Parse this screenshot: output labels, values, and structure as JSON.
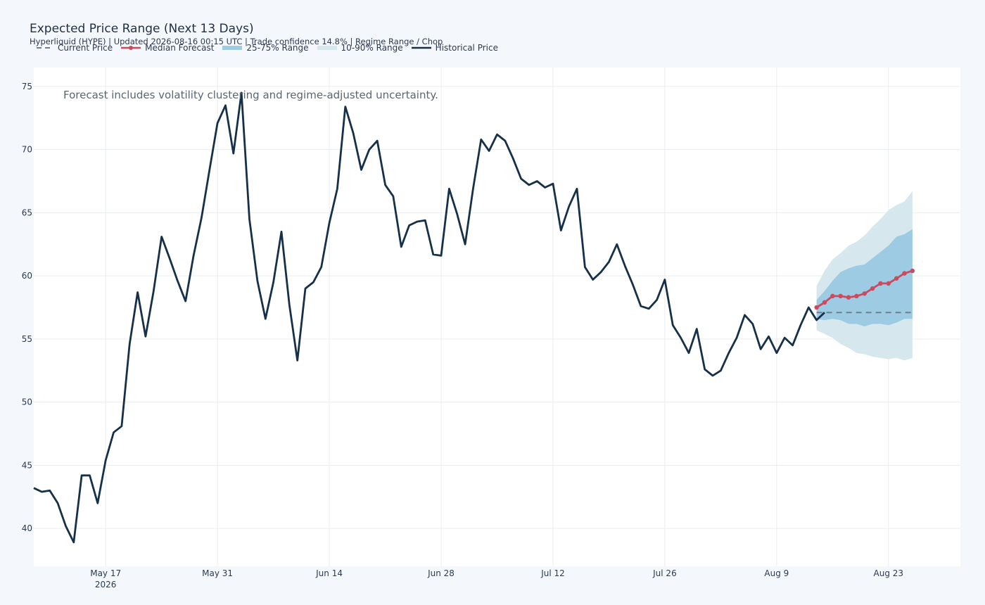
{
  "chart_data": {
    "type": "line",
    "title": "Expected Price Range (Next 13 Days)",
    "subtitle": "Hyperliquid (HYPE) | Updated 2026-08-16 00:15 UTC | Trade confidence 14.8% | Regime Range / Chop",
    "annotation": "Forecast includes volatility clustering and regime-adjusted uncertainty.",
    "xlabel": "",
    "ylabel": "",
    "xlim": [
      "2026-05-08",
      "2026-09-01"
    ],
    "ylim": [
      37,
      76.5
    ],
    "grid": true,
    "legend_placement": "top-left",
    "x_ticks": [
      {
        "date": "2026-05-17",
        "label": "May 17",
        "sublabel": "2026"
      },
      {
        "date": "2026-05-31",
        "label": "May 31",
        "sublabel": ""
      },
      {
        "date": "2026-06-14",
        "label": "Jun 14",
        "sublabel": ""
      },
      {
        "date": "2026-06-28",
        "label": "Jun 28",
        "sublabel": ""
      },
      {
        "date": "2026-07-12",
        "label": "Jul 12",
        "sublabel": ""
      },
      {
        "date": "2026-07-26",
        "label": "Jul 26",
        "sublabel": ""
      },
      {
        "date": "2026-08-09",
        "label": "Aug 9",
        "sublabel": ""
      },
      {
        "date": "2026-08-23",
        "label": "Aug 23",
        "sublabel": ""
      }
    ],
    "y_ticks": [
      40,
      45,
      50,
      55,
      60,
      65,
      70,
      75
    ],
    "legend": [
      {
        "key": "current",
        "label": "Current Price"
      },
      {
        "key": "median",
        "label": "Median Forecast"
      },
      {
        "key": "band50",
        "label": "25-75% Range"
      },
      {
        "key": "band80",
        "label": "10-90% Range"
      },
      {
        "key": "hist",
        "label": "Historical Price"
      }
    ],
    "colors": {
      "historical": "#16304a",
      "median": "#cc4a5e",
      "current": "#6e7e8e",
      "band50": "#9dcbe3",
      "band80": "#d6e7ee",
      "grid": "#e9edf1",
      "plot_bg": "#ffffff"
    },
    "current_price": {
      "value": 57.1,
      "start": "2026-08-14",
      "end": "2026-08-26"
    },
    "series": [
      {
        "name": "Historical Price",
        "start_date": "2026-05-08",
        "values": [
          43.2,
          42.9,
          43.0,
          42.0,
          40.2,
          38.9,
          44.2,
          44.2,
          42.0,
          45.4,
          47.6,
          48.1,
          54.6,
          58.7,
          55.2,
          58.8,
          63.1,
          61.4,
          59.6,
          58.0,
          61.6,
          64.6,
          68.4,
          72.1,
          73.5,
          69.7,
          74.5,
          64.5,
          59.6,
          56.6,
          59.5,
          63.5,
          57.7,
          53.3,
          59.0,
          59.5,
          60.7,
          64.2,
          66.9,
          73.4,
          71.3,
          68.4,
          70.0,
          70.7,
          67.2,
          66.3,
          62.3,
          64.0,
          64.3,
          64.4,
          61.7,
          61.6,
          66.9,
          64.9,
          62.5,
          66.9,
          70.8,
          69.9,
          71.2,
          70.7,
          69.3,
          67.7,
          67.2,
          67.5,
          67.0,
          67.3,
          63.6,
          65.5,
          66.9,
          60.7,
          59.7,
          60.3,
          61.1,
          62.5,
          60.8,
          59.3,
          57.6,
          57.4,
          58.1,
          59.7,
          56.1,
          55.1,
          53.9,
          55.8,
          52.6,
          52.1,
          52.5,
          53.9,
          55.1,
          56.9,
          56.2,
          54.2,
          55.2,
          53.9,
          55.1,
          54.5,
          56.1,
          57.5,
          56.5,
          57.1
        ]
      },
      {
        "name": "Median Forecast",
        "start_date": "2026-08-14",
        "values": [
          57.5,
          57.9,
          58.4,
          58.4,
          58.3,
          58.4,
          58.6,
          59.0,
          59.4,
          59.4,
          59.8,
          60.2,
          60.4
        ]
      }
    ],
    "bands": [
      {
        "name": "10-90% Range",
        "start_date": "2026-08-14",
        "lower": [
          55.7,
          55.4,
          55.1,
          54.6,
          54.3,
          53.9,
          53.8,
          53.6,
          53.5,
          53.4,
          53.5,
          53.3,
          53.5
        ],
        "upper": [
          59.2,
          60.4,
          61.3,
          61.8,
          62.4,
          62.7,
          63.2,
          63.9,
          64.5,
          65.2,
          65.6,
          65.9,
          66.7
        ]
      },
      {
        "name": "25-75% Range",
        "start_date": "2026-08-14",
        "lower": [
          56.6,
          56.5,
          56.6,
          56.5,
          56.2,
          56.2,
          56.0,
          56.2,
          56.2,
          56.1,
          56.3,
          56.6,
          56.6
        ],
        "upper": [
          58.1,
          58.8,
          59.6,
          60.3,
          60.6,
          60.8,
          60.9,
          61.4,
          61.9,
          62.4,
          63.1,
          63.3,
          63.7
        ]
      }
    ]
  }
}
